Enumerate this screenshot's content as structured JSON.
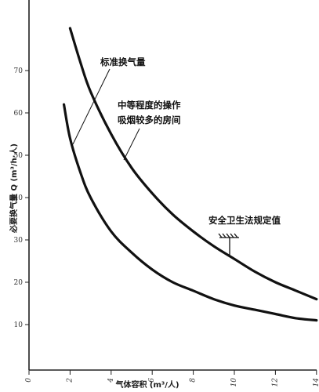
{
  "chart_data": {
    "type": "line",
    "xlabel": "气体容积 (m³/人)",
    "ylabel": "必要换气量 Q (m³/h·人)",
    "x_ticks": [
      "0",
      "2",
      "4",
      "6",
      "8",
      "10",
      "12",
      "14"
    ],
    "y_ticks": [
      "10",
      "20",
      "30",
      "40",
      "50",
      "60",
      "70"
    ],
    "xlim": [
      0,
      14
    ],
    "ylim": [
      0,
      80
    ],
    "grid": false,
    "series": [
      {
        "name": "中等程度的操作 吸烟较多的房间",
        "x": [
          2,
          2.5,
          3,
          4,
          5,
          6,
          7,
          8,
          9,
          10,
          11,
          12,
          13,
          14
        ],
        "y": [
          80,
          72,
          65,
          55,
          47,
          41,
          36,
          32,
          28.5,
          25.5,
          22.5,
          20,
          18,
          16
        ]
      },
      {
        "name": "标准换气量",
        "x": [
          1.7,
          2,
          2.5,
          3,
          4,
          5,
          6,
          7,
          8,
          9,
          10,
          11,
          12,
          13,
          14
        ],
        "y": [
          62,
          54,
          46,
          40,
          32,
          27,
          23,
          20,
          18,
          16,
          14.5,
          13.5,
          12.5,
          11.5,
          11
        ]
      }
    ],
    "annotations": {
      "standard": "标准换气量",
      "moderate_line1": "中等程度的操作",
      "moderate_line2": "吸烟较多的房间",
      "safety": "安全卫生法规定值"
    }
  }
}
